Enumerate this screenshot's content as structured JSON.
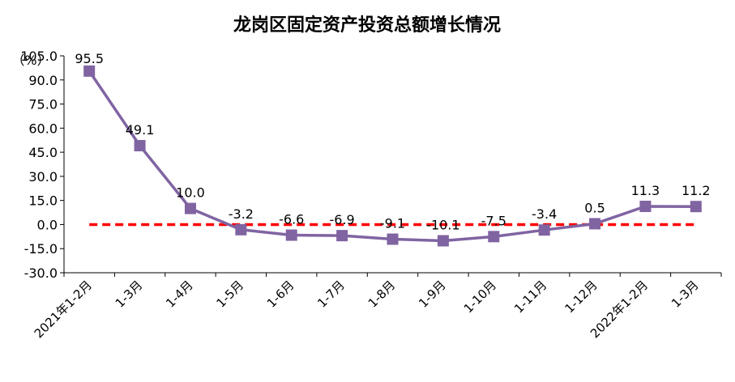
{
  "chart_data": {
    "type": "line",
    "title": "龙岗区固定资产投资总额增长情况",
    "ylabel": "（%）",
    "xlabel": "",
    "ylim": [
      -30,
      105
    ],
    "yticks": [
      "105.0",
      "90.0",
      "75.0",
      "60.0",
      "45.0",
      "30.0",
      "15.0",
      "0.0",
      "-15.0",
      "-30.0"
    ],
    "categories": [
      "2021年1-2月",
      "1-3月",
      "1-4月",
      "1-5月",
      "1-6月",
      "1-7月",
      "1-8月",
      "1-9月",
      "1-10月",
      "1-11月",
      "1-12月",
      "2022年1-2月",
      "1-3月"
    ],
    "series": [
      {
        "values": [
          95.5,
          49.1,
          10.0,
          -3.2,
          -6.6,
          -6.9,
          -9.1,
          -10.1,
          -7.5,
          -3.4,
          0.5,
          11.3,
          11.2
        ],
        "labels": [
          "95.5",
          "49.1",
          "10.0",
          "-3.2",
          "-6.6",
          "-6.9",
          "-9.1",
          "-10.1",
          "-7.5",
          "-3.4",
          "0.5",
          "11.3",
          "11.2"
        ],
        "color": "#8064a2",
        "marker": "square"
      }
    ],
    "reference_line": {
      "value": 0,
      "color": "#ff0000",
      "style": "dashed"
    },
    "grid": false,
    "legend": "none"
  }
}
